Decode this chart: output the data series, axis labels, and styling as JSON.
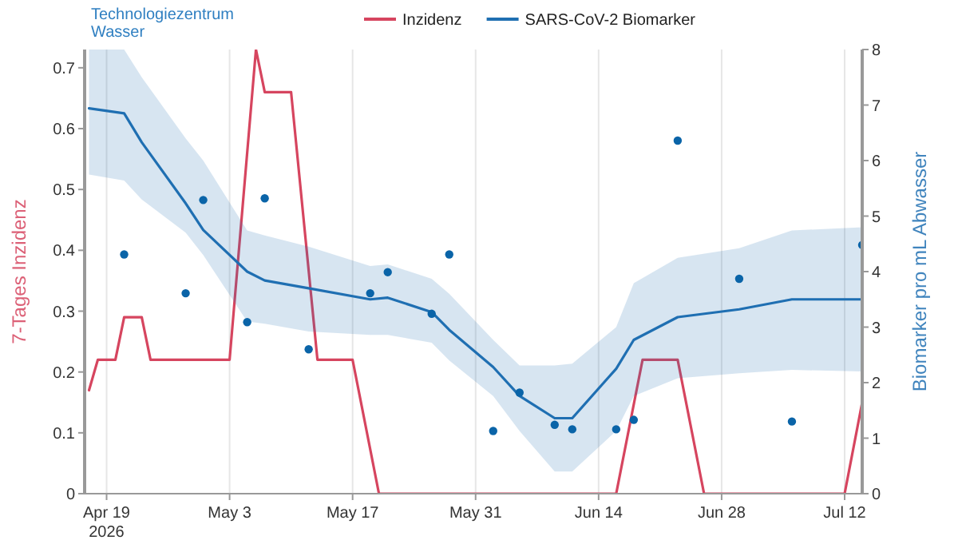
{
  "chart_data": {
    "type": "line",
    "ylabel": "7-Tages Inzidenz",
    "y2label": "Biomarker pro mL Abwasser",
    "annotations": [
      "Technologiezentrum Wasser"
    ],
    "xlim": [
      "2026-04-16T12:00",
      "2026-07-14"
    ],
    "xticks": [
      {
        "value": "2026-04-19",
        "label": "Apr 19\n2026"
      },
      {
        "value": "2026-05-03",
        "label": "May 3"
      },
      {
        "value": "2026-05-17",
        "label": "May 17"
      },
      {
        "value": "2026-05-31",
        "label": "May 31"
      },
      {
        "value": "2026-06-14",
        "label": "Jun 14"
      },
      {
        "value": "2026-06-28",
        "label": "Jun 28"
      },
      {
        "value": "2026-07-12",
        "label": "Jul 12"
      }
    ],
    "ylim": [
      0,
      0.73
    ],
    "yticks": [
      0,
      0.1,
      0.2,
      0.3,
      0.4,
      0.5,
      0.6,
      0.7
    ],
    "y2lim": [
      0,
      8
    ],
    "y2ticks": [
      0,
      1,
      2,
      3,
      4,
      5,
      6,
      7,
      8
    ],
    "grid": "x",
    "legend": "top",
    "line_style": "solid",
    "series": [
      {
        "name": "Inzidenz",
        "color": "#d6455f",
        "marker": "none",
        "x": [
          "2026-04-17",
          "2026-04-18",
          "2026-04-20",
          "2026-04-21",
          "2026-04-23",
          "2026-04-24",
          "2026-05-03",
          "2026-05-06",
          "2026-05-07",
          "2026-05-10",
          "2026-05-13",
          "2026-05-17",
          "2026-05-20",
          "2026-06-16",
          "2026-06-19",
          "2026-06-23",
          "2026-06-26",
          "2026-07-12",
          "2026-07-14"
        ],
        "values": [
          0.17,
          0.22,
          0.22,
          0.29,
          0.29,
          0.22,
          0.22,
          0.73,
          0.66,
          0.66,
          0.22,
          0.22,
          0,
          0,
          0.22,
          0.22,
          0,
          0,
          0.15
        ]
      },
      {
        "name": "SARS-CoV-2 Biomarker",
        "axis": "y2",
        "color": "#1f6fb2",
        "marker": "none",
        "x": [
          "2026-04-17",
          "2026-04-21",
          "2026-04-23",
          "2026-04-28",
          "2026-04-30",
          "2026-05-05",
          "2026-05-07",
          "2026-05-12",
          "2026-05-19",
          "2026-05-21",
          "2026-05-26",
          "2026-05-28",
          "2026-06-02",
          "2026-06-05",
          "2026-06-09",
          "2026-06-11",
          "2026-06-16",
          "2026-06-18",
          "2026-06-23",
          "2026-06-30",
          "2026-07-06",
          "2026-07-14"
        ],
        "values": [
          6.94,
          6.85,
          6.33,
          5.23,
          4.75,
          4.0,
          3.84,
          3.7,
          3.5,
          3.53,
          3.27,
          2.95,
          2.28,
          1.76,
          1.36,
          1.36,
          2.25,
          2.77,
          3.18,
          3.32,
          3.5,
          3.5
        ],
        "lower": [
          5.75,
          5.64,
          5.3,
          4.7,
          4.3,
          3.1,
          3.06,
          2.92,
          2.86,
          2.86,
          2.72,
          2.4,
          1.76,
          1.13,
          0.4,
          0.4,
          1.13,
          1.76,
          2.08,
          2.17,
          2.23,
          2.2
        ],
        "upper": [
          8,
          8,
          7.5,
          6.4,
          6.0,
          4.74,
          4.65,
          4.45,
          4.1,
          4.13,
          3.87,
          3.6,
          2.77,
          2.31,
          2.31,
          2.34,
          3.0,
          3.79,
          4.25,
          4.42,
          4.74,
          4.8
        ]
      },
      {
        "type": "scatter",
        "axis": "y2",
        "color": "#0a64a8",
        "marker": "circle",
        "x": [
          "2026-04-21",
          "2026-04-28",
          "2026-04-30",
          "2026-05-05",
          "2026-05-07",
          "2026-05-12",
          "2026-05-19",
          "2026-05-21",
          "2026-05-26",
          "2026-05-28",
          "2026-06-02",
          "2026-06-05",
          "2026-06-09",
          "2026-06-11",
          "2026-06-16",
          "2026-06-18",
          "2026-06-23",
          "2026-06-30",
          "2026-07-06",
          "2026-07-14"
        ],
        "values": [
          4.31,
          3.61,
          5.29,
          3.09,
          5.32,
          2.6,
          3.61,
          3.99,
          3.24,
          4.31,
          1.13,
          1.82,
          1.24,
          1.16,
          1.16,
          1.33,
          6.36,
          3.87,
          1.3,
          4.48
        ]
      }
    ]
  }
}
